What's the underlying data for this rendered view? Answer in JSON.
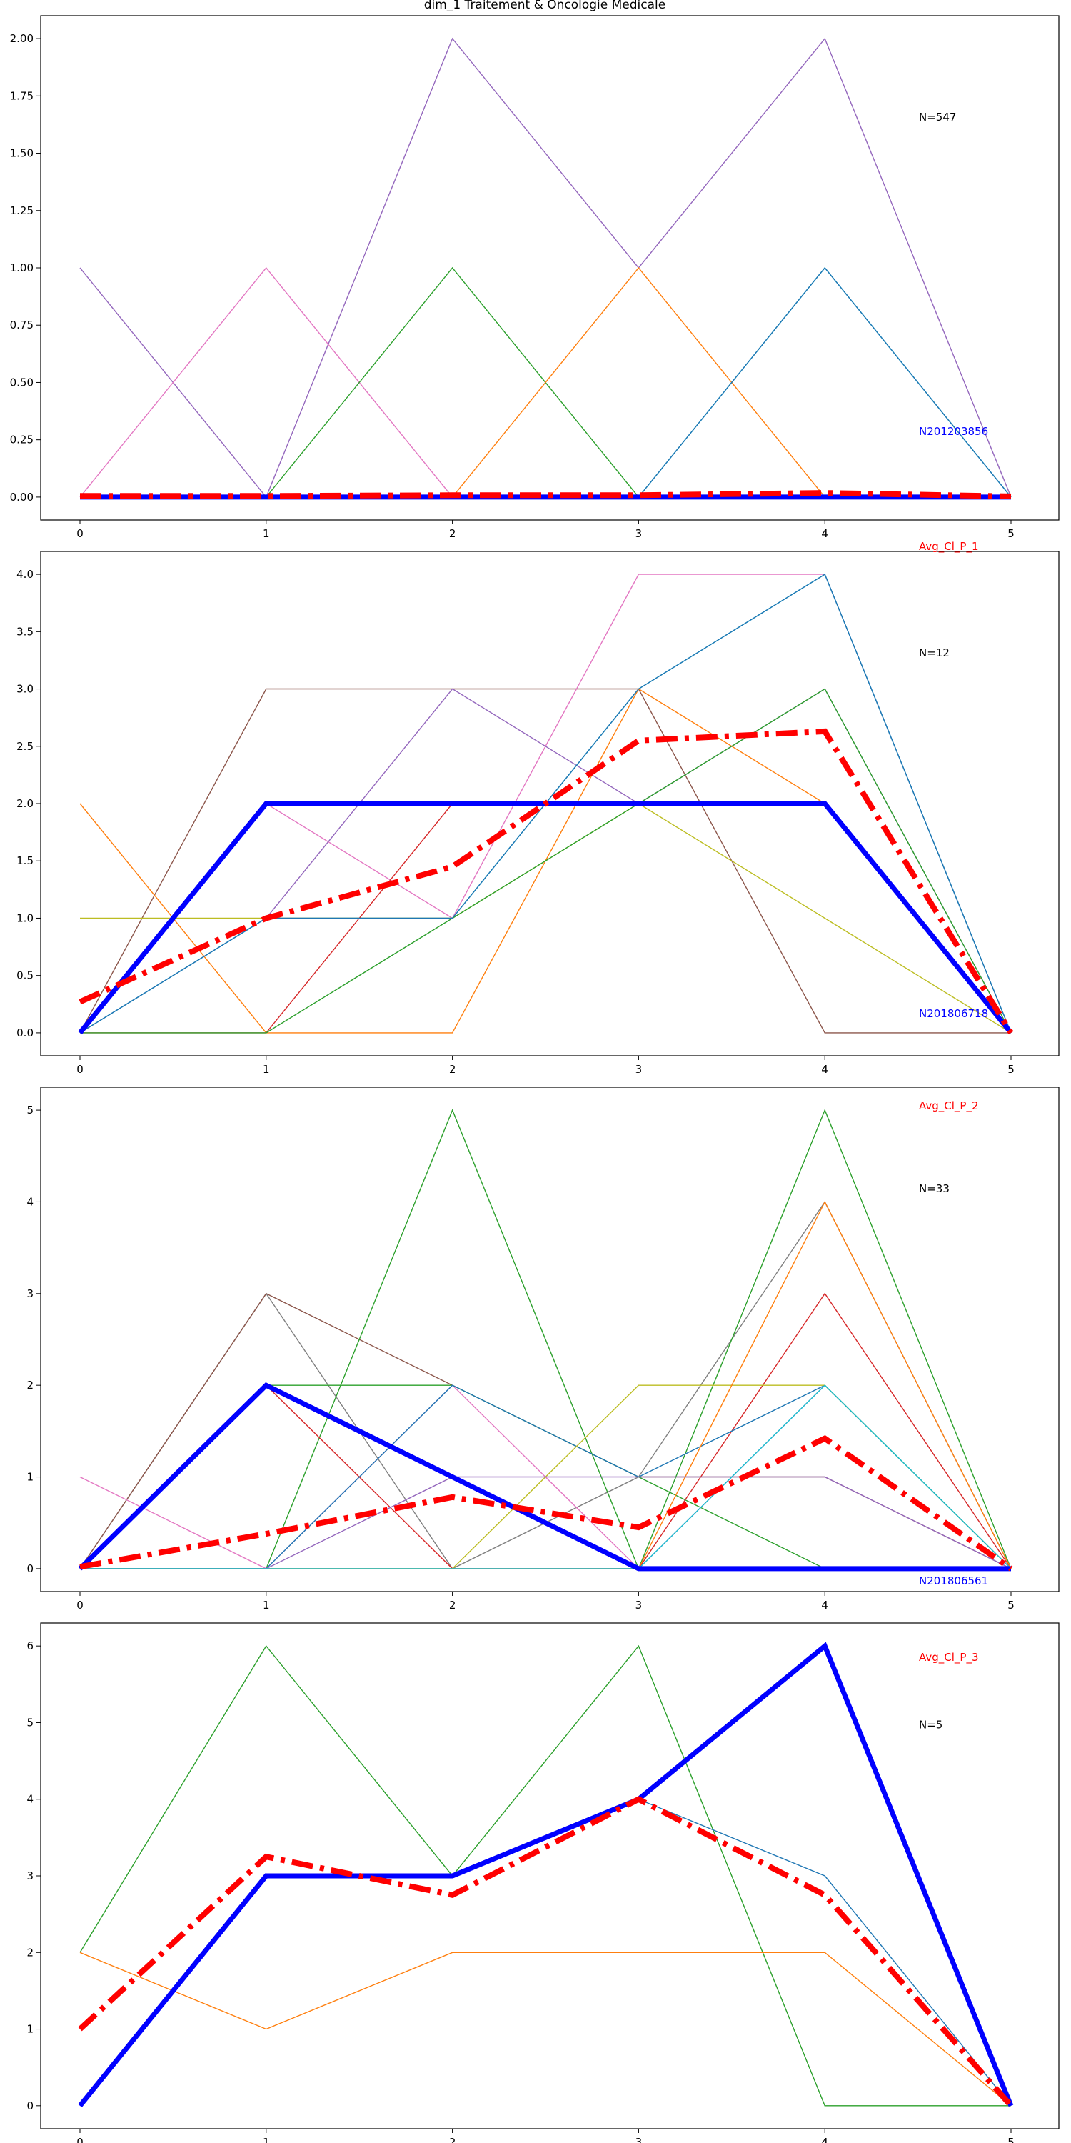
{
  "title": "dim_1 Traitement & Oncologie Medicale",
  "colors": {
    "avg": "#ff0000",
    "rep": "#0000ff",
    "palette": [
      "#1f77b4",
      "#ff7f0e",
      "#2ca02c",
      "#d62728",
      "#9467bd",
      "#8c564b",
      "#e377c2",
      "#7f7f7f",
      "#bcbd22",
      "#17becf"
    ]
  },
  "chart_data": [
    {
      "type": "line",
      "x": [
        0,
        1,
        2,
        3,
        4,
        5
      ],
      "ylim": [
        -0.1,
        2.1
      ],
      "yticks": [
        "0.00",
        "0.25",
        "0.50",
        "0.75",
        "1.00",
        "1.25",
        "1.50",
        "1.75",
        "2.00"
      ],
      "ytick_values": [
        0,
        0.25,
        0.5,
        0.75,
        1.0,
        1.25,
        1.5,
        1.75,
        2.0
      ],
      "xticks": [
        "0",
        "1",
        "2",
        "3",
        "4",
        "5"
      ],
      "annotations": {
        "count": "N=547",
        "rep_label": "N201203856",
        "avg_label": ""
      },
      "series": [
        {
          "values": [
            1,
            0,
            2,
            1,
            2,
            0
          ],
          "color": "#9467bd"
        },
        {
          "values": [
            0,
            1,
            0,
            0,
            0,
            0
          ],
          "color": "#e377c2"
        },
        {
          "values": [
            0,
            0,
            1,
            0,
            0,
            0
          ],
          "color": "#2ca02c"
        },
        {
          "values": [
            0,
            0,
            0,
            1,
            0,
            0
          ],
          "color": "#ff7f0e"
        },
        {
          "values": [
            0,
            0,
            0,
            0,
            1,
            0
          ],
          "color": "#17becf"
        },
        {
          "values": [
            0,
            0,
            0,
            0,
            1,
            0
          ],
          "color": "#1f77b4"
        }
      ],
      "rep": {
        "values": [
          0,
          0,
          0,
          0,
          0,
          0
        ]
      },
      "avg": {
        "values": [
          0.005,
          0.005,
          0.008,
          0.008,
          0.018,
          0.003
        ]
      }
    },
    {
      "type": "line",
      "x": [
        0,
        1,
        2,
        3,
        4,
        5
      ],
      "ylim": [
        -0.2,
        4.2
      ],
      "yticks": [
        "0.0",
        "0.5",
        "1.0",
        "1.5",
        "2.0",
        "2.5",
        "3.0",
        "3.5",
        "4.0"
      ],
      "ytick_values": [
        0,
        0.5,
        1.0,
        1.5,
        2.0,
        2.5,
        3.0,
        3.5,
        4.0
      ],
      "xticks": [
        "0",
        "1",
        "2",
        "3",
        "4",
        "5"
      ],
      "annotations": {
        "count": "N=12",
        "rep_label": "N201806718",
        "avg_label": "Avg_Cl_P_1"
      },
      "series": [
        {
          "values": [
            0,
            3,
            3,
            3,
            0,
            0
          ],
          "color": "#8c564b"
        },
        {
          "values": [
            0,
            2,
            1,
            4,
            4,
            0
          ],
          "color": "#e377c2"
        },
        {
          "values": [
            0,
            1,
            3,
            2,
            3,
            0
          ],
          "color": "#9467bd"
        },
        {
          "values": [
            0,
            1,
            1,
            3,
            4,
            0
          ],
          "color": "#17becf"
        },
        {
          "values": [
            2,
            0,
            0,
            3,
            2,
            0
          ],
          "color": "#ff7f0e"
        },
        {
          "values": [
            1,
            1,
            1,
            2,
            1,
            0
          ],
          "color": "#bcbd22"
        },
        {
          "values": [
            0,
            0,
            2,
            2,
            2,
            0
          ],
          "color": "#d62728"
        },
        {
          "values": [
            0,
            0,
            1,
            2,
            3,
            0
          ],
          "color": "#2ca02c"
        },
        {
          "values": [
            0,
            1,
            1,
            3,
            4,
            0
          ],
          "color": "#1f77b4"
        }
      ],
      "rep": {
        "values": [
          0,
          2,
          2,
          2,
          2,
          0
        ]
      },
      "avg": {
        "values": [
          0.27,
          1.0,
          1.45,
          2.55,
          2.63,
          0
        ]
      }
    },
    {
      "type": "line",
      "x": [
        0,
        1,
        2,
        3,
        4,
        5
      ],
      "ylim": [
        -0.25,
        5.25
      ],
      "yticks": [
        "0",
        "1",
        "2",
        "3",
        "4",
        "5"
      ],
      "ytick_values": [
        0,
        1,
        2,
        3,
        4,
        5
      ],
      "xticks": [
        "0",
        "1",
        "2",
        "3",
        "4",
        "5"
      ],
      "annotations": {
        "count": "N=33",
        "rep_label": "N201806561",
        "avg_label": "Avg_Cl_P_2"
      },
      "series": [
        {
          "values": [
            0,
            3,
            0,
            1,
            4,
            0
          ],
          "color": "#7f7f7f"
        },
        {
          "values": [
            0,
            3,
            2,
            1,
            1,
            0
          ],
          "color": "#8c564b"
        },
        {
          "values": [
            0,
            0,
            5,
            0,
            5,
            0
          ],
          "color": "#2ca02c"
        },
        {
          "values": [
            0,
            2,
            2,
            1,
            0,
            0
          ],
          "color": "#2ca02c"
        },
        {
          "values": [
            0,
            2,
            0,
            0,
            3,
            0
          ],
          "color": "#d62728"
        },
        {
          "values": [
            1,
            0,
            2,
            0,
            2,
            0
          ],
          "color": "#e377c2"
        },
        {
          "values": [
            0,
            0,
            2,
            1,
            2,
            0
          ],
          "color": "#1f77b4"
        },
        {
          "values": [
            0,
            0,
            0,
            2,
            2,
            0
          ],
          "color": "#bcbd22"
        },
        {
          "values": [
            0,
            0,
            0,
            0,
            4,
            0
          ],
          "color": "#ff7f0e"
        },
        {
          "values": [
            0,
            0,
            1,
            1,
            1,
            0
          ],
          "color": "#9467bd"
        },
        {
          "values": [
            0,
            0,
            0,
            0,
            2,
            0
          ],
          "color": "#17becf"
        }
      ],
      "rep": {
        "values": [
          0,
          2,
          1,
          0,
          0,
          0
        ]
      },
      "avg": {
        "values": [
          0.02,
          0.38,
          0.78,
          0.45,
          1.42,
          0
        ]
      }
    },
    {
      "type": "line",
      "x": [
        0,
        1,
        2,
        3,
        4,
        5
      ],
      "ylim": [
        -0.3,
        6.3
      ],
      "yticks": [
        "0",
        "1",
        "2",
        "3",
        "4",
        "5",
        "6"
      ],
      "ytick_values": [
        0,
        1,
        2,
        3,
        4,
        5,
        6
      ],
      "xticks": [
        "0",
        "1",
        "2",
        "3",
        "4",
        "5"
      ],
      "annotations": {
        "count": "N=5",
        "rep_label": "",
        "avg_label": "Avg_Cl_P_3"
      },
      "series": [
        {
          "values": [
            2,
            6,
            3,
            6,
            0,
            0
          ],
          "color": "#2ca02c"
        },
        {
          "values": [
            2,
            1,
            2,
            2,
            2,
            0
          ],
          "color": "#ff7f0e"
        },
        {
          "values": [
            0,
            3,
            3,
            4,
            3,
            0
          ],
          "color": "#1f77b4"
        }
      ],
      "rep": {
        "values": [
          0,
          3,
          3,
          4,
          6,
          0
        ]
      },
      "avg": {
        "values": [
          1.0,
          3.25,
          2.75,
          4.0,
          2.75,
          0
        ]
      }
    }
  ]
}
